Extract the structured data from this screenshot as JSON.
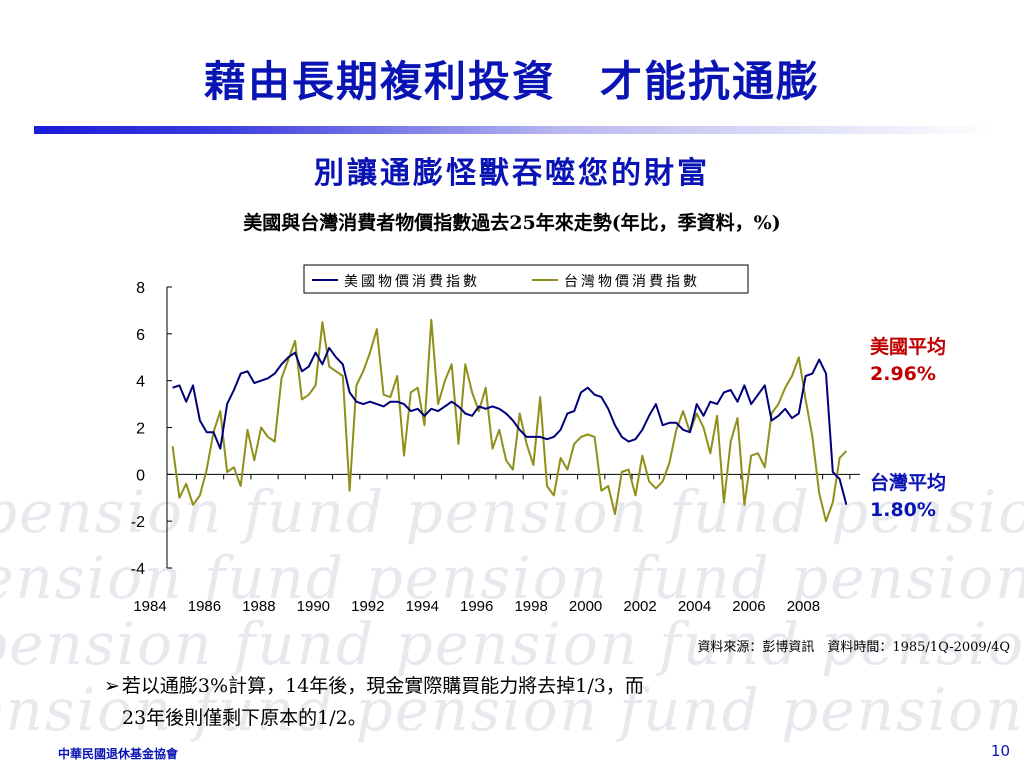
{
  "slide": {
    "title": "藉由長期複利投資　才能抗通膨",
    "subtitle": "別讓通膨怪獸吞噬您的財富",
    "chart_title": "美國與台灣消費者物價指數過去25年來走勢(年比，季資料，%)",
    "us_avg_label": "美國平均",
    "us_avg_value": "2.96%",
    "tw_avg_label": "台灣平均",
    "tw_avg_value": "1.80%",
    "source": "資料來源：彭博資訊　資料時間：1985/1Q-2009/4Q",
    "note_line1": "若以通膨3%計算，14年後，現金實際購買能力將去掉1/3，而",
    "note_line2": "23年後則僅剩下原本的1/2。",
    "footer_org": "中華民國退休基金協會",
    "page_number": "10",
    "watermark_text": "pension fund pension fund pension fund",
    "colors": {
      "title": "#0a14b4",
      "us_line": "#00007a",
      "tw_line": "#8f8f1a",
      "us_avg": "#c00000",
      "tw_avg": "#0a14b4"
    }
  },
  "chart_data": {
    "type": "line",
    "x_start": "1985Q1",
    "x_end": "2009Q4",
    "x_ticks": [
      "1984",
      "1986",
      "1988",
      "1990",
      "1992",
      "1994",
      "1996",
      "1998",
      "2000",
      "2002",
      "2004",
      "2006",
      "2008"
    ],
    "ylim": [
      -4,
      8
    ],
    "y_ticks": [
      "8",
      "6",
      "4",
      "2",
      "0",
      "-2",
      "-4"
    ],
    "legend_position": "top-center",
    "series": [
      {
        "name": "美國物價消費指數",
        "color": "#00007a",
        "values": [
          3.7,
          3.8,
          3.1,
          3.8,
          2.3,
          1.8,
          1.8,
          1.1,
          3.0,
          3.6,
          4.3,
          4.4,
          3.9,
          4.0,
          4.1,
          4.3,
          4.7,
          5.0,
          5.2,
          4.4,
          4.6,
          5.2,
          4.7,
          5.4,
          5.0,
          4.7,
          3.5,
          3.1,
          3.0,
          3.1,
          3.0,
          2.9,
          3.1,
          3.1,
          3.0,
          2.7,
          2.8,
          2.5,
          2.8,
          2.7,
          2.9,
          3.1,
          2.9,
          2.6,
          2.5,
          2.9,
          2.8,
          2.9,
          2.8,
          2.6,
          2.3,
          1.9,
          1.6,
          1.6,
          1.6,
          1.5,
          1.6,
          1.9,
          2.6,
          2.7,
          3.5,
          3.7,
          3.4,
          3.3,
          2.8,
          2.1,
          1.6,
          1.4,
          1.5,
          1.9,
          2.5,
          3.0,
          2.1,
          2.2,
          2.2,
          1.9,
          1.8,
          3.0,
          2.5,
          3.1,
          3.0,
          3.5,
          3.6,
          3.1,
          3.8,
          3.0,
          3.4,
          3.8,
          2.3,
          2.5,
          2.8,
          2.4,
          2.6,
          4.2,
          4.3,
          4.9,
          4.3,
          0.1,
          -0.2,
          -1.3
        ]
      },
      {
        "name": "台灣物價消費指數",
        "color": "#8f8f1a",
        "values": [
          1.2,
          -1.0,
          -0.4,
          -1.3,
          -0.9,
          0.2,
          1.8,
          2.7,
          0.1,
          0.3,
          -0.5,
          1.9,
          0.6,
          2.0,
          1.6,
          1.4,
          4.1,
          4.9,
          5.7,
          3.2,
          3.4,
          3.8,
          6.5,
          4.6,
          4.4,
          4.2,
          -0.7,
          3.8,
          4.4,
          5.2,
          6.2,
          3.4,
          3.3,
          4.2,
          0.8,
          3.5,
          3.7,
          2.1,
          6.6,
          3.0,
          4.0,
          4.7,
          1.3,
          4.7,
          3.5,
          2.7,
          3.7,
          1.1,
          1.9,
          0.6,
          0.2,
          2.6,
          1.3,
          0.4,
          3.3,
          -0.5,
          -0.9,
          0.7,
          0.2,
          1.3,
          1.6,
          1.7,
          1.6,
          -0.7,
          -0.5,
          -1.7,
          0.1,
          0.2,
          -0.9,
          0.8,
          -0.3,
          -0.6,
          -0.3,
          0.5,
          1.9,
          2.7,
          1.8,
          2.6,
          2.0,
          0.9,
          2.5,
          -1.2,
          1.4,
          2.4,
          -1.3,
          0.8,
          0.9,
          0.3,
          2.6,
          3.0,
          3.7,
          4.2,
          5.0,
          3.2,
          1.6,
          -0.8,
          -2.0,
          -1.2,
          0.7,
          1.0
        ]
      }
    ]
  }
}
